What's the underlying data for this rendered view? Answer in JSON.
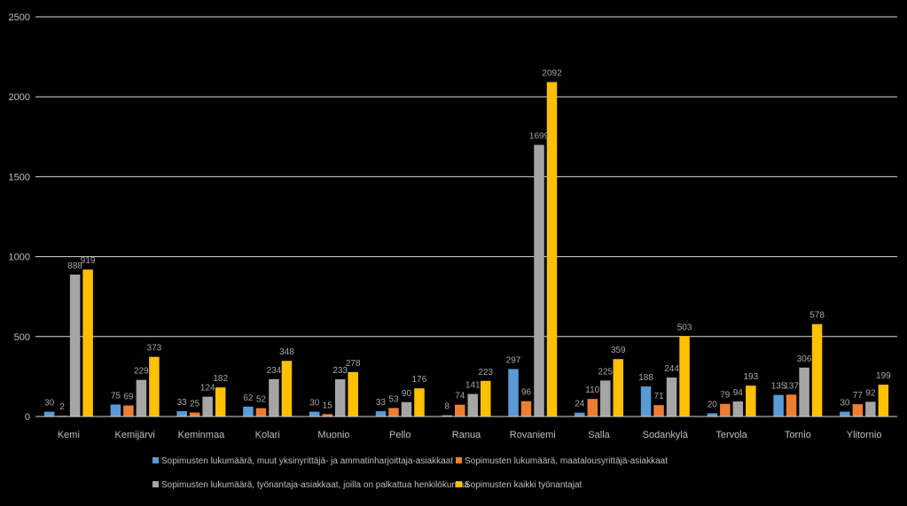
{
  "chart_data": {
    "type": "bar",
    "categories": [
      "Kemi",
      "Kemijärvi",
      "Keminmaa",
      "Kolari",
      "Muonio",
      "Pello",
      "Ranua",
      "Rovaniemi",
      "Salla",
      "Sodankylä",
      "Tervola",
      "Tornio",
      "Ylitornio"
    ],
    "series": [
      {
        "name": "Sopimusten lukumäärä, muut yksinyrittäjä- ja ammatinharjoittaja-asiakkaat",
        "color": "#5b9bd5",
        "values": [
          30,
          75,
          33,
          62,
          30,
          33,
          8,
          297,
          24,
          188,
          20,
          135,
          30
        ]
      },
      {
        "name": "Sopimusten lukumäärä, maatalousyrittäjä-asiakkaat",
        "color": "#ed7d31",
        "values": [
          2,
          69,
          25,
          52,
          15,
          53,
          74,
          96,
          110,
          71,
          79,
          137,
          77
        ]
      },
      {
        "name": "Sopimusten lukumäärä, työnantaja-asiakkaat, joilla on palkattua henkilökuntaa",
        "color": "#a5a5a5",
        "values": [
          888,
          229,
          124,
          234,
          233,
          90,
          141,
          1699,
          225,
          244,
          94,
          306,
          92
        ]
      },
      {
        "name": "Sopimusten kaikki työnantajat",
        "color": "#ffc000",
        "values": [
          919,
          373,
          182,
          348,
          278,
          176,
          223,
          2092,
          359,
          503,
          193,
          578,
          199
        ]
      }
    ],
    "data_labels": [
      [
        "30",
        "75",
        "33",
        "62",
        "30",
        "33",
        "8",
        "297",
        "24",
        "188",
        "20",
        "135",
        "30"
      ],
      [
        "2",
        "69",
        "25",
        "52",
        "15",
        "53",
        "74",
        "96",
        "110",
        "71",
        "79",
        "137",
        "77"
      ],
      [
        "888",
        "229",
        "124",
        "234",
        "233",
        "90",
        "141",
        "1699",
        "225",
        "244",
        "94",
        "306",
        "92"
      ],
      [
        "919",
        "373",
        "182",
        "348",
        "278",
        "176",
        "223",
        "2092",
        "359",
        "503",
        "193",
        "578",
        "199"
      ]
    ],
    "yticks": [
      "0",
      "500",
      "1000",
      "1500",
      "2000",
      "2500"
    ],
    "ylim": [
      0,
      2500
    ],
    "grid": true,
    "legend_position": "bottom",
    "title": "",
    "xlabel": "",
    "ylabel": ""
  }
}
